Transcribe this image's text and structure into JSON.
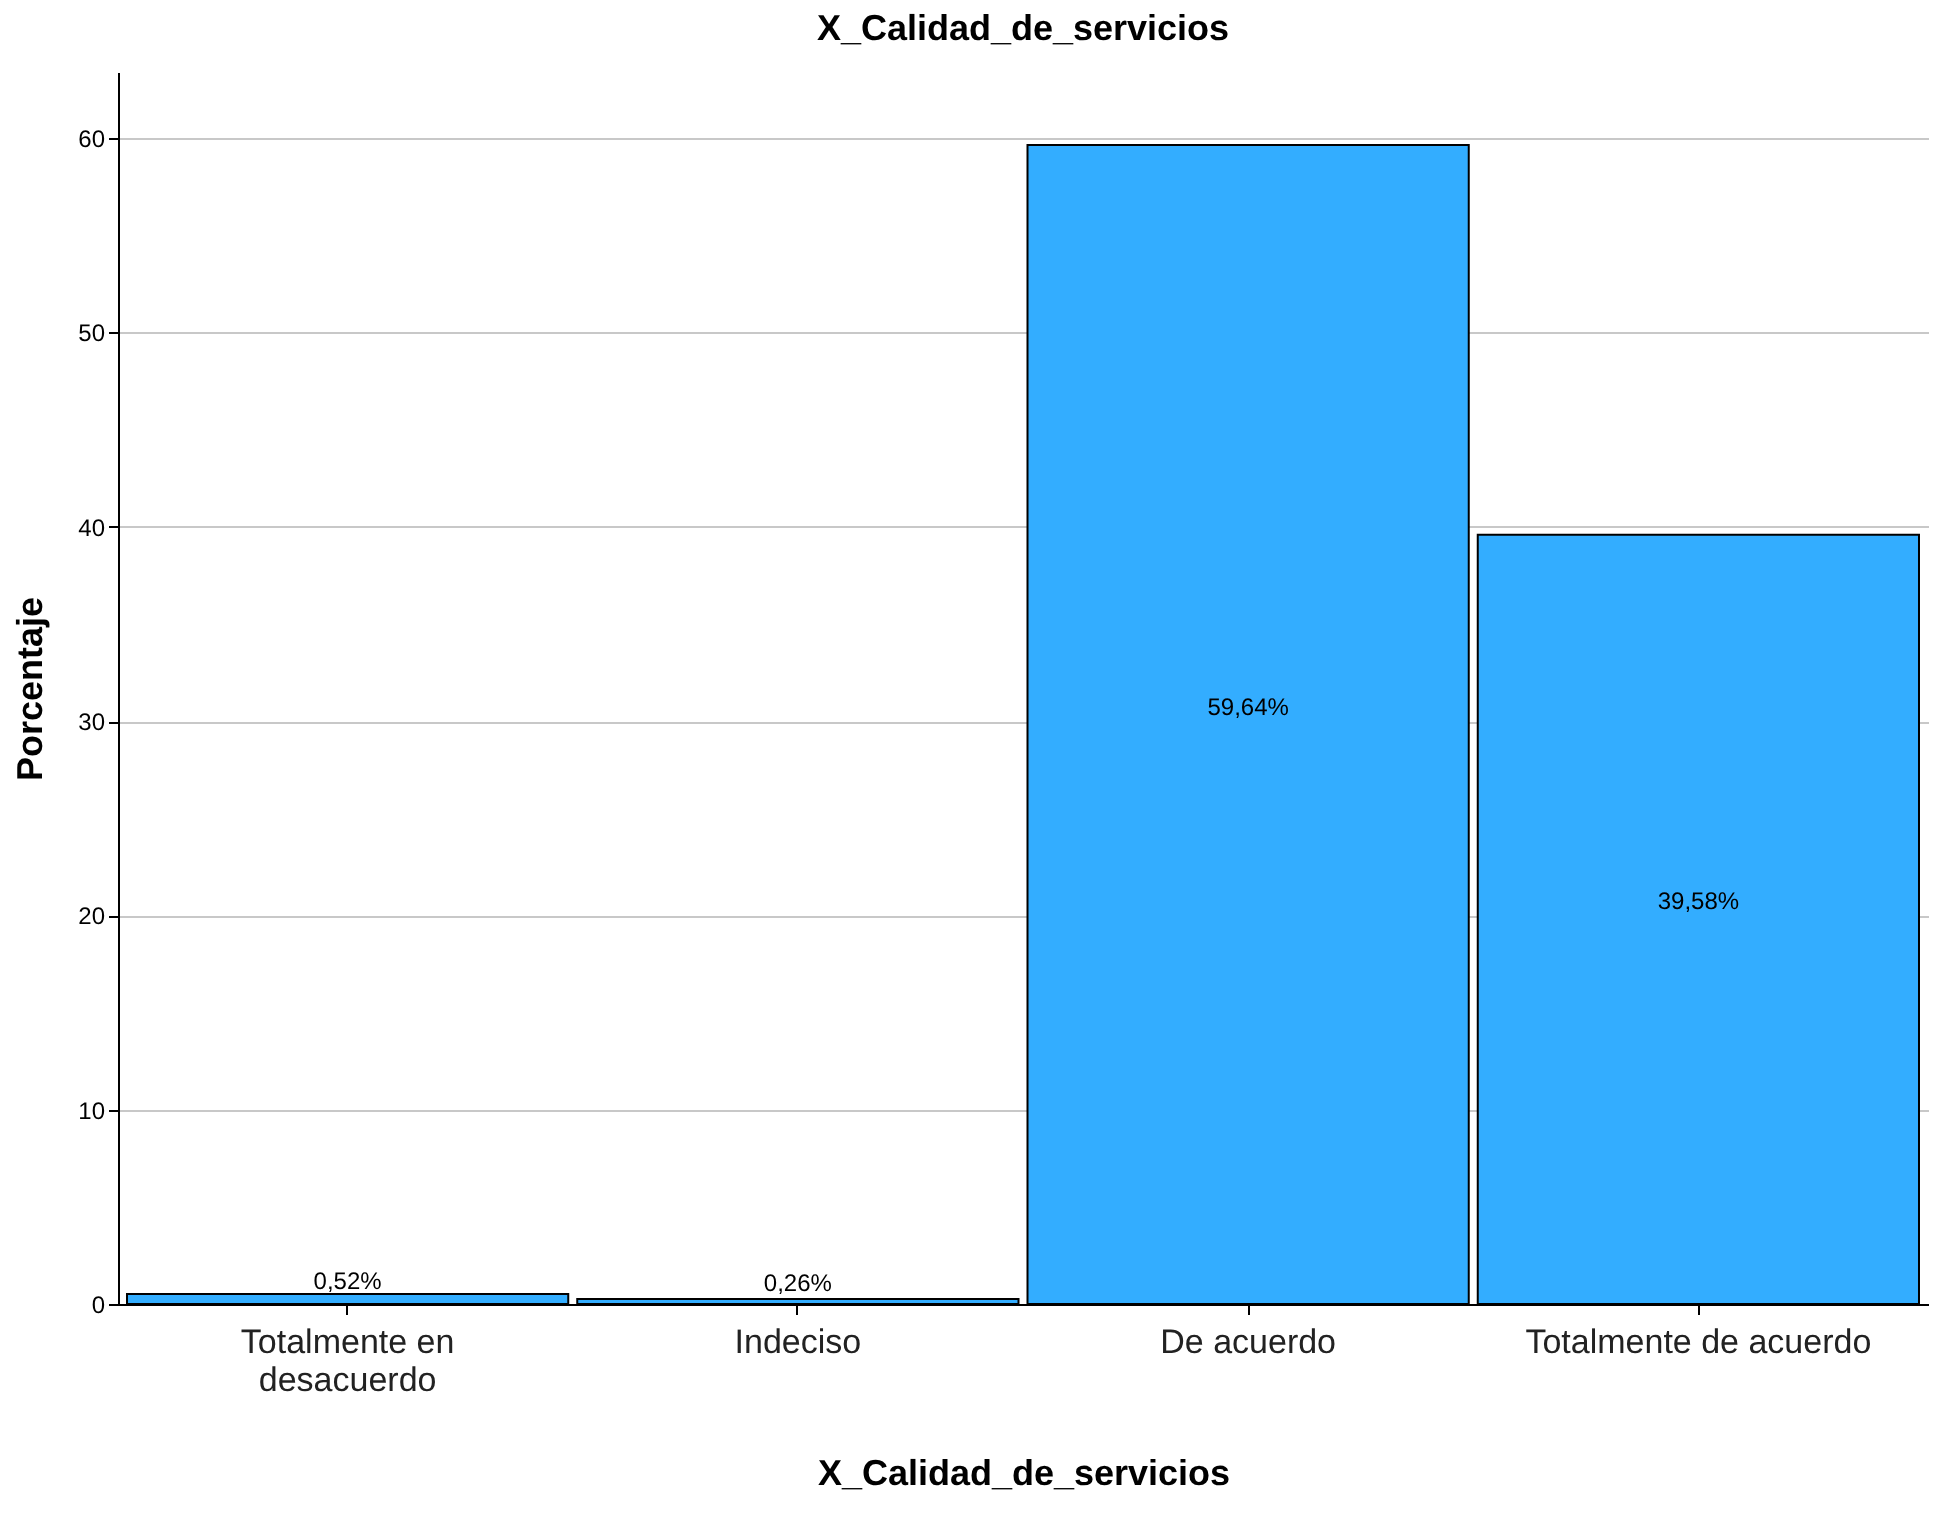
{
  "chart_data": {
    "type": "bar",
    "title": "X_Calidad_de_servicios",
    "xlabel": "X_Calidad_de_servicios",
    "ylabel": "Porcentaje",
    "categories": [
      "Totalmente en desacuerdo",
      "Indeciso",
      "De acuerdo",
      "Totalmente de acuerdo"
    ],
    "values": [
      0.52,
      0.26,
      59.64,
      39.58
    ],
    "value_labels": [
      "0,52%",
      "0,26%",
      "59,64%",
      "39,58%"
    ],
    "color": "#33adff",
    "ylim": [
      0,
      63.4
    ],
    "yticks": [
      0,
      10,
      20,
      30,
      40,
      50,
      60
    ],
    "grid": "y"
  }
}
